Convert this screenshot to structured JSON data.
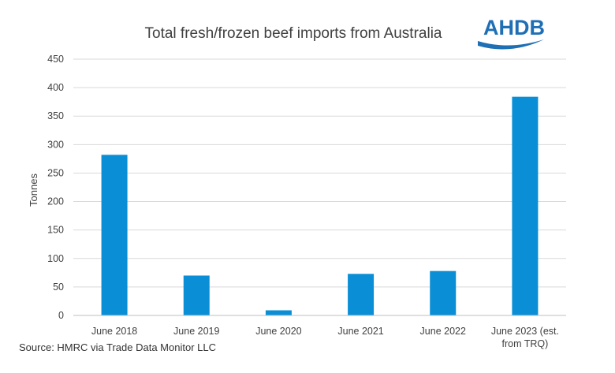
{
  "logo": {
    "text": "AHDB",
    "color": "#1f6fb5"
  },
  "source": "Source: HMRC via Trade Data Monitor LLC",
  "chart_data": {
    "type": "bar",
    "title": "Total fresh/frozen beef imports from Australia",
    "xlabel": "",
    "ylabel": "Tonnes",
    "ylim": [
      0,
      450
    ],
    "yticks": [
      0,
      50,
      100,
      150,
      200,
      250,
      300,
      350,
      400,
      450
    ],
    "grid": true,
    "legend": "none",
    "bar_color": "#0a8fd6",
    "categories": [
      [
        "June 2018"
      ],
      [
        "June 2019"
      ],
      [
        "June 2020"
      ],
      [
        "June 2021"
      ],
      [
        "June 2022"
      ],
      [
        "June 2023 (est.",
        "from TRQ)"
      ]
    ],
    "values": [
      282,
      70,
      9,
      73,
      78,
      384
    ]
  }
}
